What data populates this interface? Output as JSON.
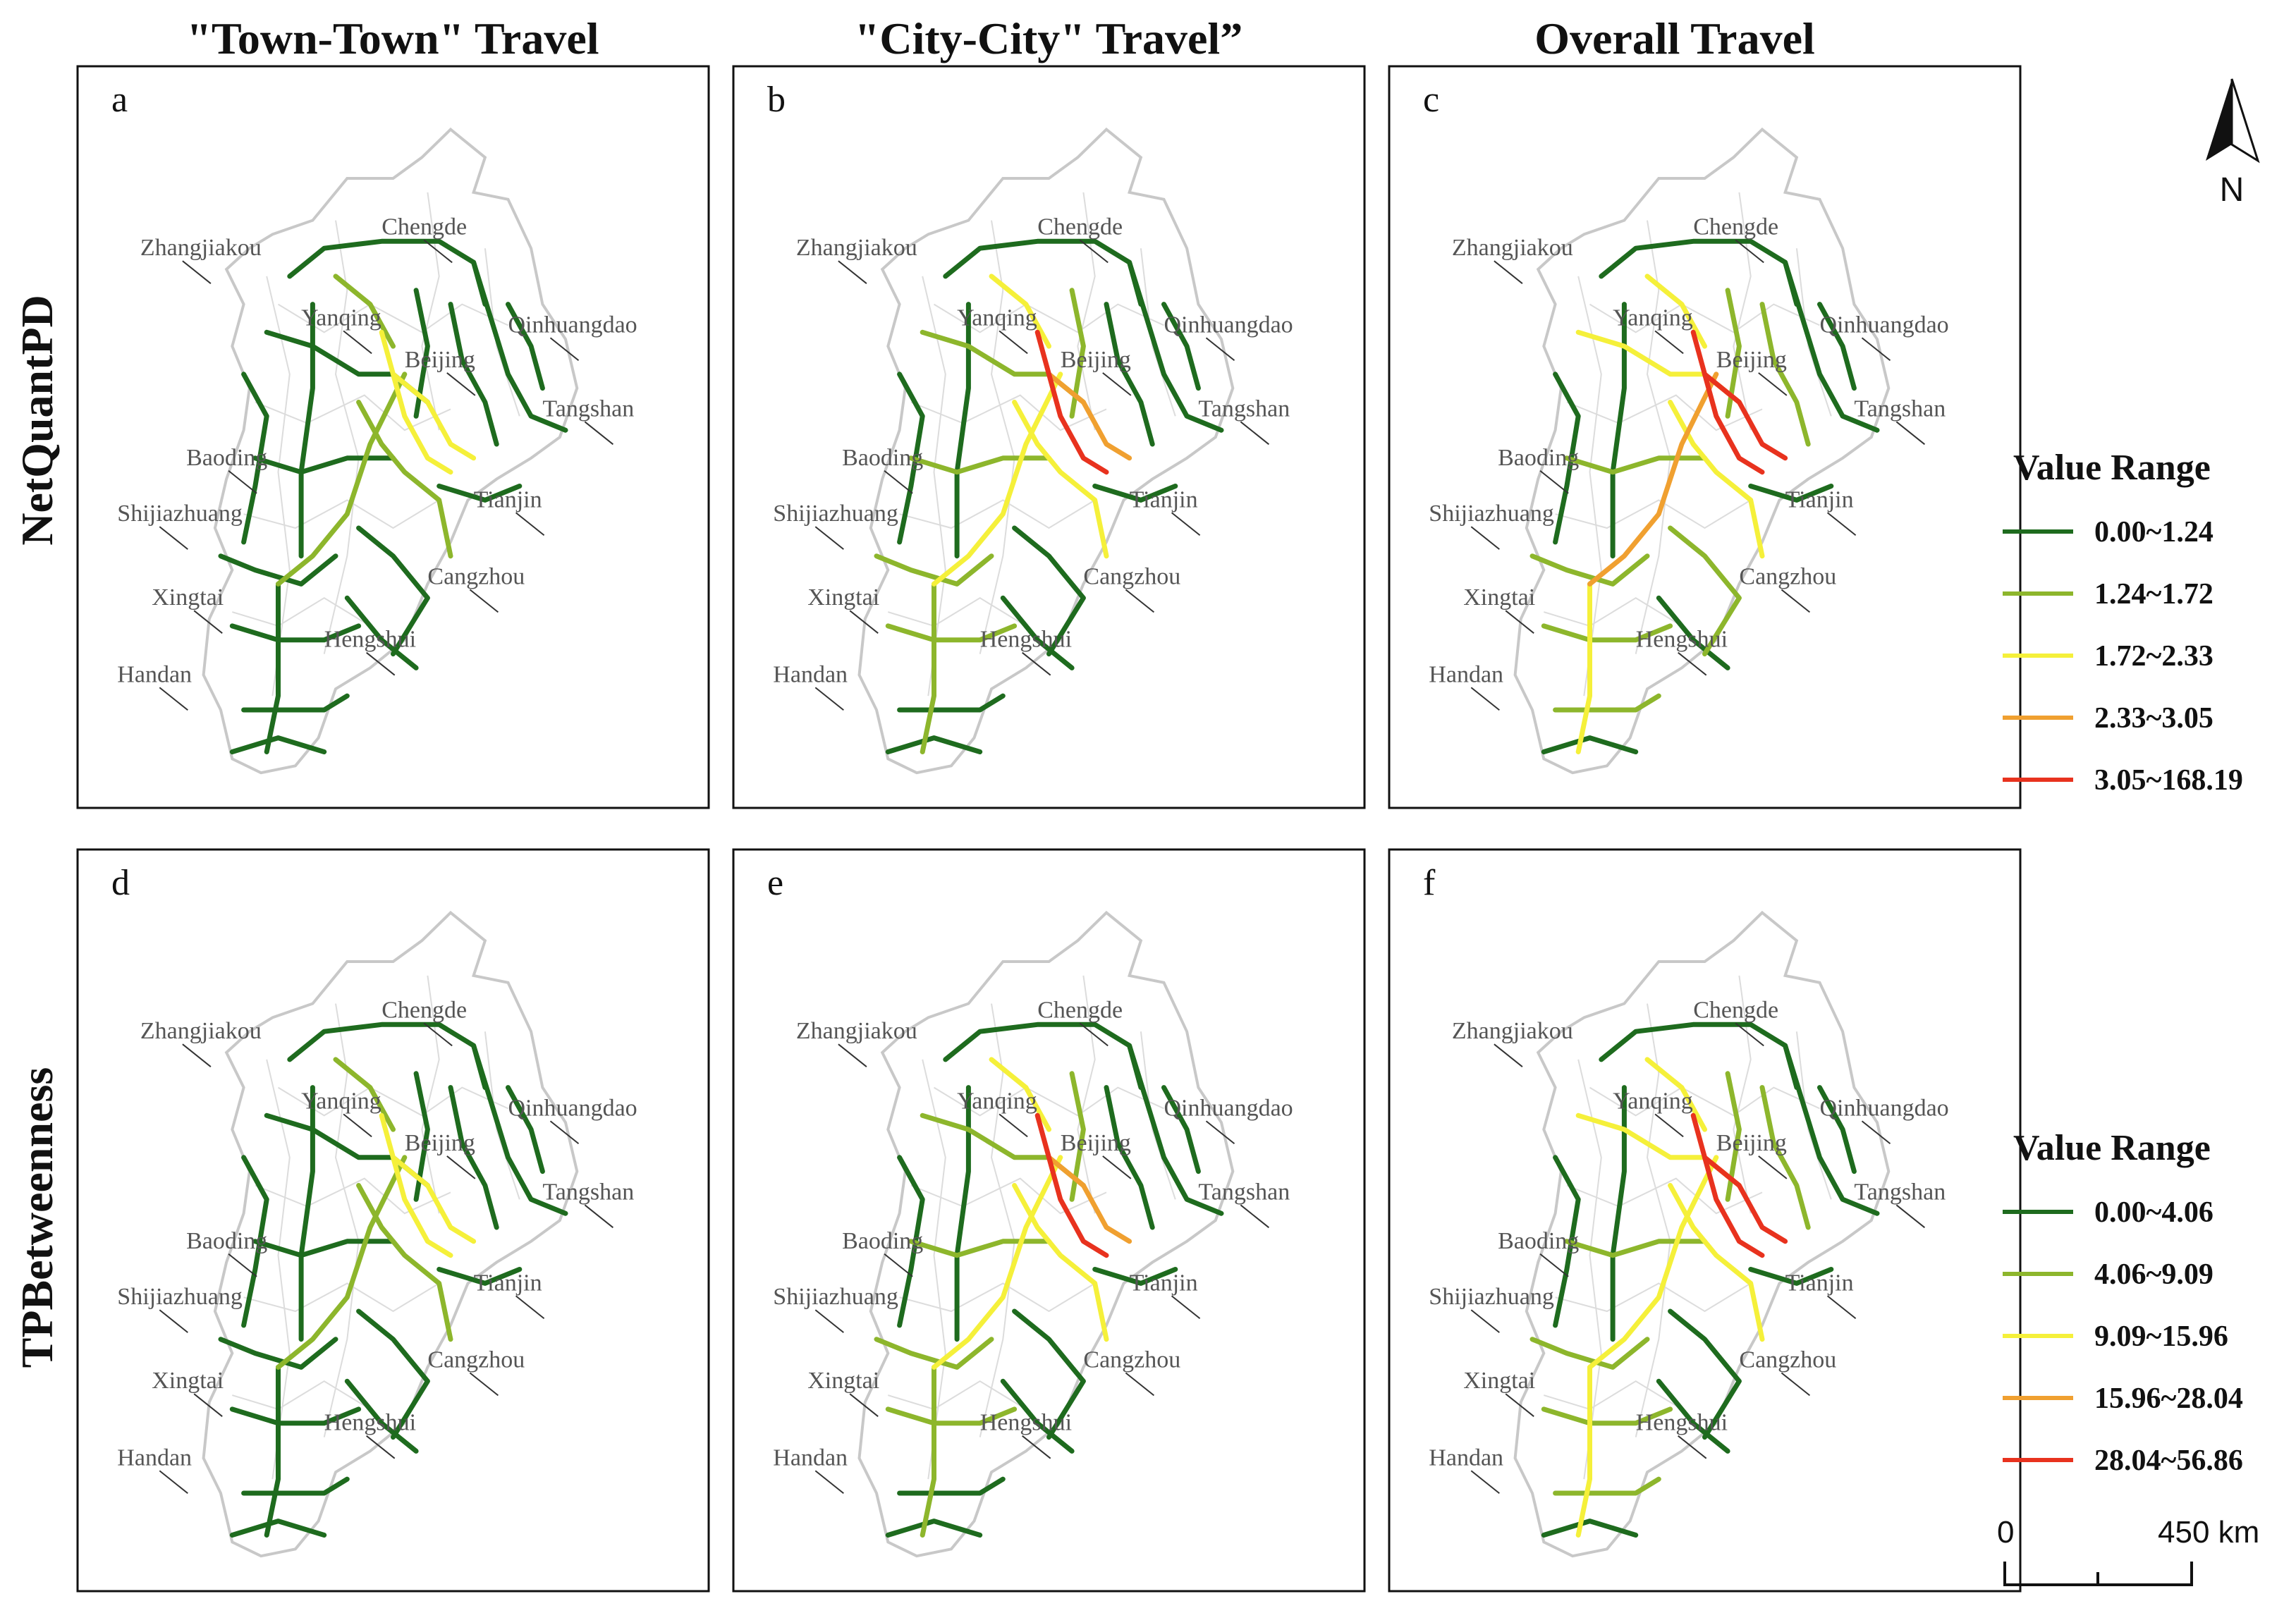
{
  "column_titles": [
    "\"Town-Town\" Travel",
    "\"City-City\" Travel”",
    "Overall Travel"
  ],
  "row_titles": [
    "NetQuantPD",
    "TPBetweenness"
  ],
  "panels": [
    {
      "letter": "a",
      "hot": 0.25
    },
    {
      "letter": "b",
      "hot": 0.55
    },
    {
      "letter": "c",
      "hot": 0.85
    },
    {
      "letter": "d",
      "hot": 0.2
    },
    {
      "letter": "e",
      "hot": 0.6
    },
    {
      "letter": "f",
      "hot": 0.75
    }
  ],
  "cities": [
    "Zhangjiakou",
    "Chengde",
    "Yanqing",
    "Beijing",
    "Qinhuangdao",
    "Tangshan",
    "Baoding",
    "Tianjin",
    "Shijiazhuang",
    "Cangzhou",
    "Xingtai",
    "Hengshui",
    "Handan"
  ],
  "legends": [
    {
      "title": "Value Range",
      "items": [
        {
          "label": "0.00~1.24",
          "color": "#1e6b1e"
        },
        {
          "label": "1.24~1.72",
          "color": "#8db62c"
        },
        {
          "label": "1.72~2.33",
          "color": "#f5f03a"
        },
        {
          "label": "2.33~3.05",
          "color": "#f0a030"
        },
        {
          "label": "3.05~168.19",
          "color": "#e8321e"
        }
      ]
    },
    {
      "title": "Value Range",
      "items": [
        {
          "label": "0.00~4.06",
          "color": "#1e6b1e"
        },
        {
          "label": "4.06~9.09",
          "color": "#8db62c"
        },
        {
          "label": "9.09~15.96",
          "color": "#f5f03a"
        },
        {
          "label": "15.96~28.04",
          "color": "#f0a030"
        },
        {
          "label": "28.04~56.86",
          "color": "#e8321e"
        }
      ]
    }
  ],
  "north_label": "N",
  "scale_bar": {
    "start": "0",
    "end": "450 km"
  },
  "colors": {
    "region_outline": "#c8c8c8",
    "region_fill": "#ffffff",
    "panel_border": "#111111"
  }
}
